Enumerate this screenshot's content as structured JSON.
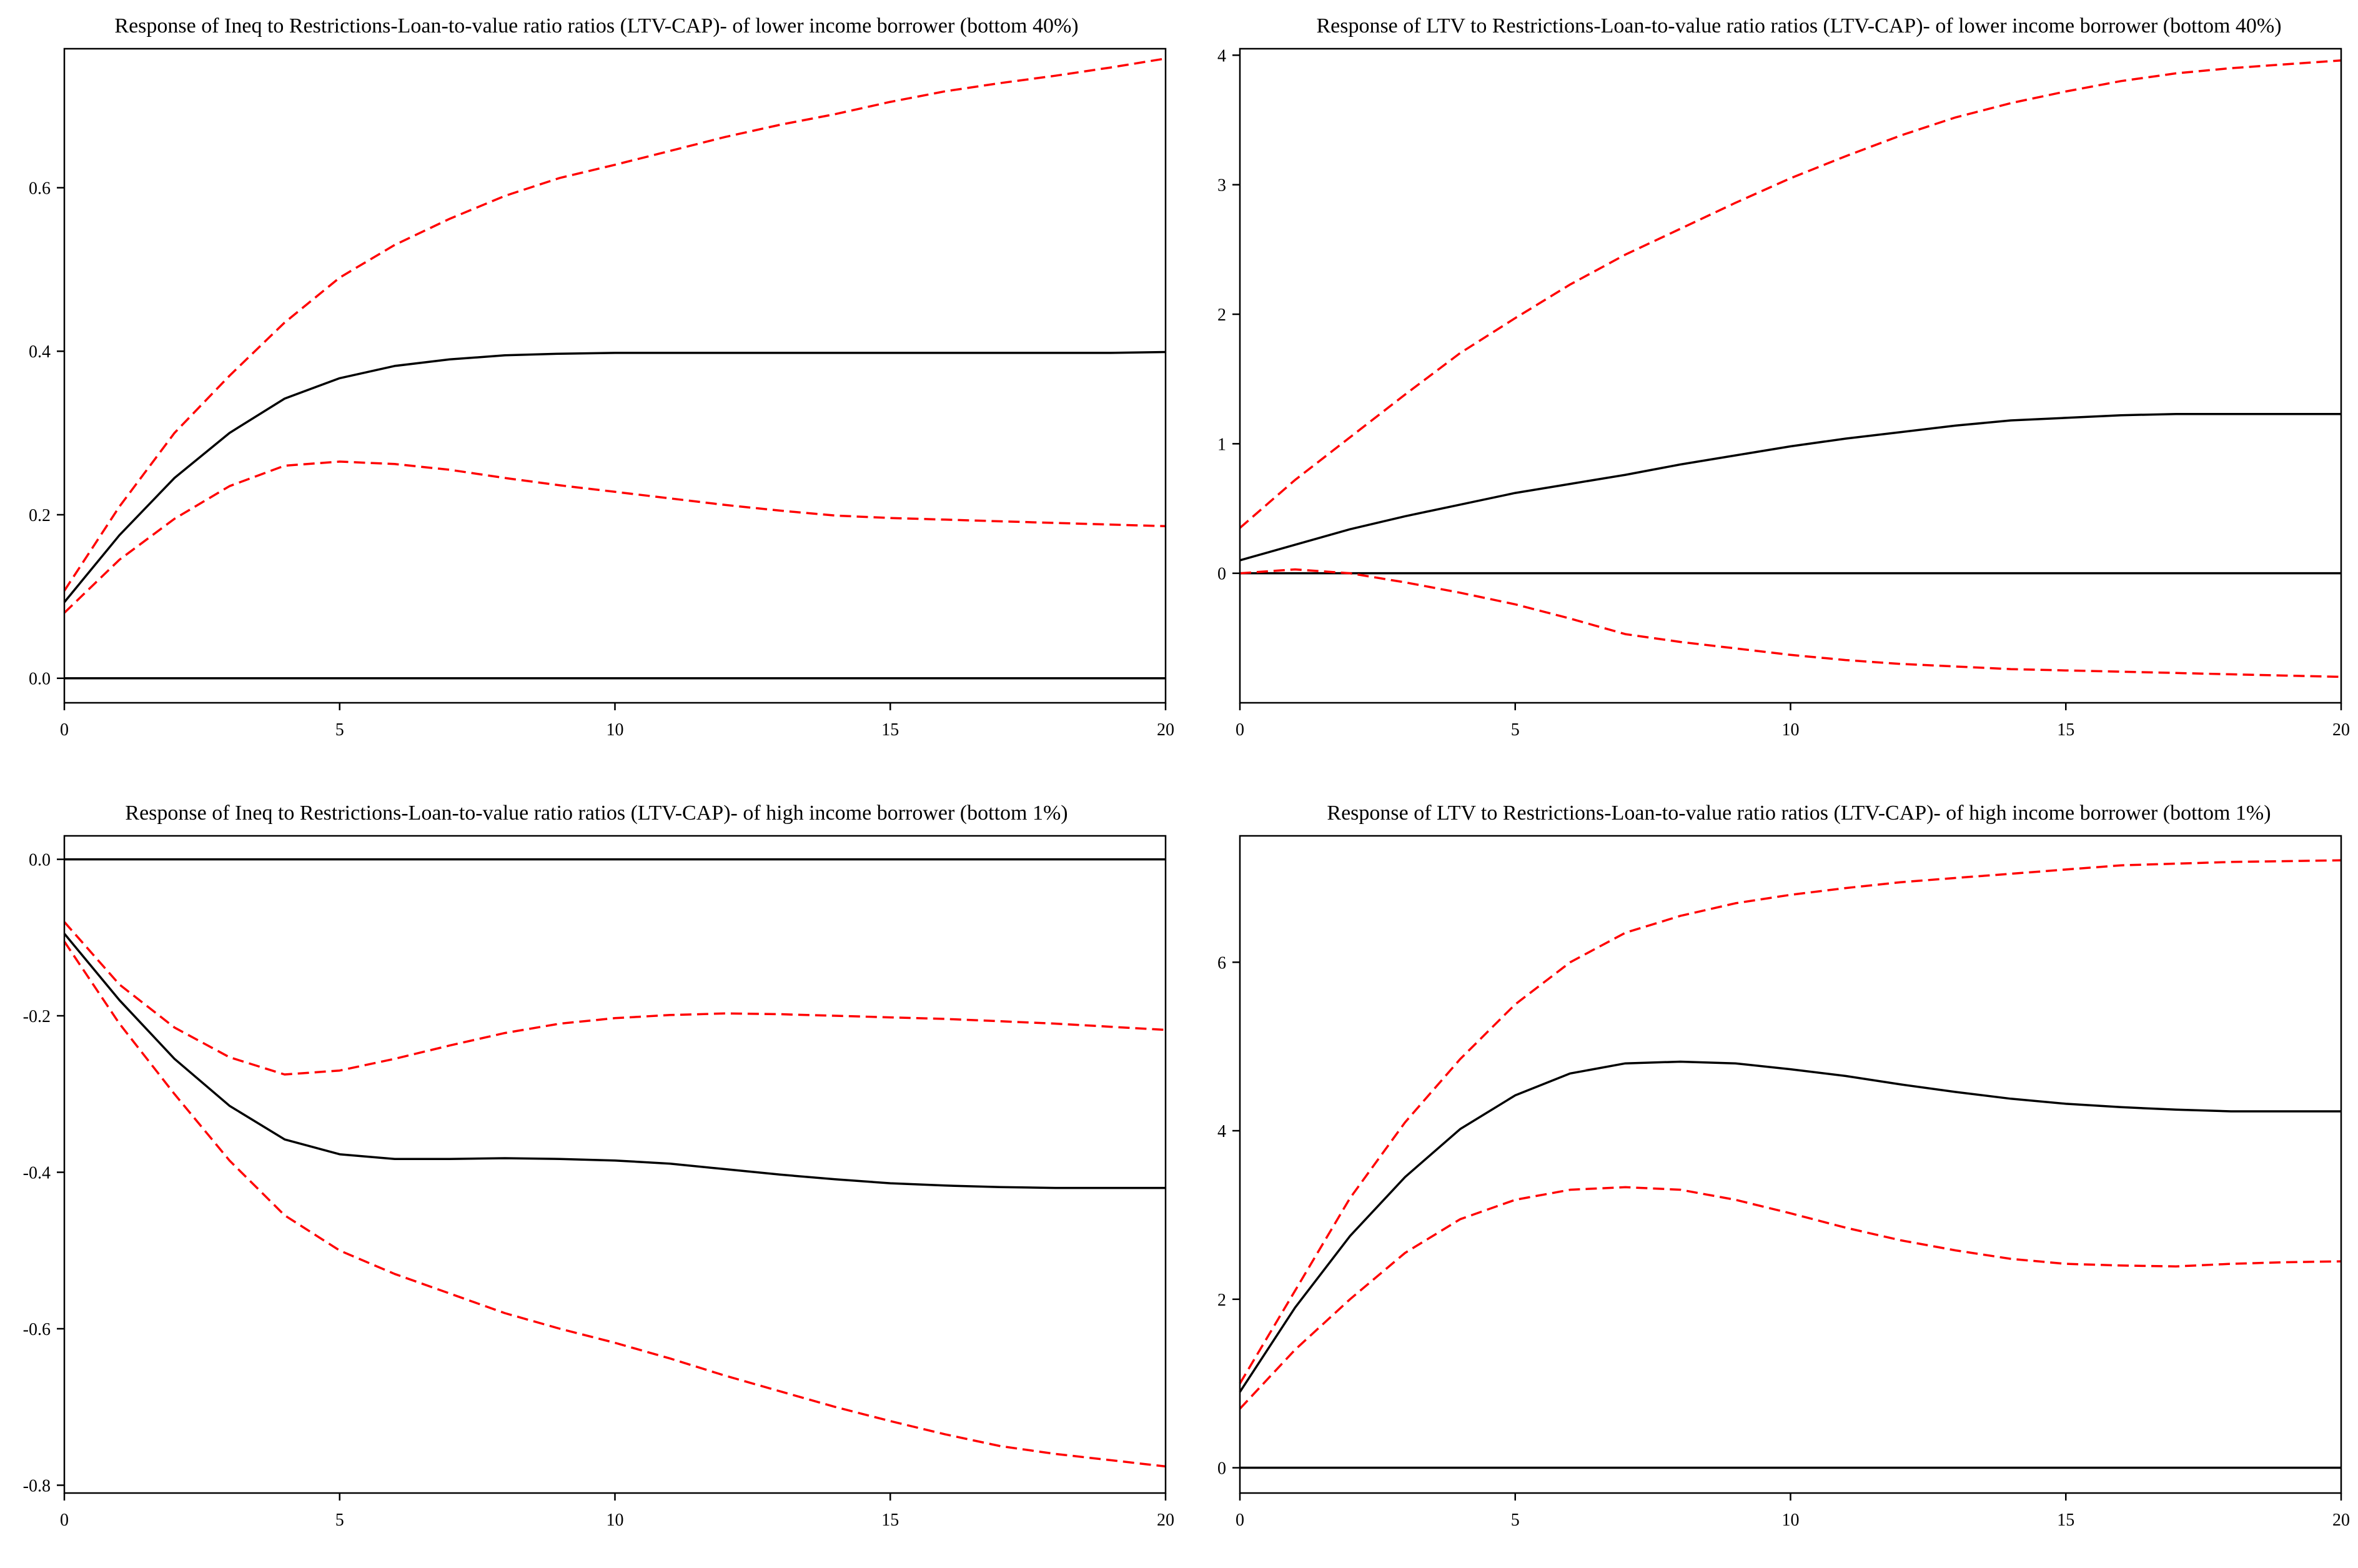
{
  "colors": {
    "response": "#000000",
    "bands": "#ff0000",
    "axes": "#000000"
  },
  "chart_data": [
    {
      "type": "line",
      "title": "Response of Ineq to Restrictions-Loan-to-value ratio ratios (LTV-CAP)- of lower income borrower (bottom 40%)",
      "x": [
        0,
        1,
        2,
        3,
        4,
        5,
        6,
        7,
        8,
        9,
        10,
        11,
        12,
        13,
        14,
        15,
        16,
        17,
        18,
        19,
        20
      ],
      "xlim": [
        0,
        20
      ],
      "xticks": [
        0,
        5,
        10,
        15,
        20
      ],
      "ylim": [
        -0.03,
        0.77
      ],
      "yticks": [
        0.0,
        0.2,
        0.4,
        0.6
      ],
      "ytick_labels": [
        "0.0",
        "0.2",
        "0.4",
        "0.6"
      ],
      "zero_line": 0,
      "series": [
        {
          "name": "response",
          "style": "solid",
          "values": [
            0.093,
            0.175,
            0.245,
            0.3,
            0.342,
            0.367,
            0.382,
            0.39,
            0.395,
            0.397,
            0.398,
            0.398,
            0.398,
            0.398,
            0.398,
            0.398,
            0.398,
            0.398,
            0.398,
            0.398,
            0.399
          ]
        },
        {
          "name": "upper band",
          "style": "dashed",
          "values": [
            0.107,
            0.21,
            0.3,
            0.37,
            0.435,
            0.49,
            0.53,
            0.562,
            0.59,
            0.612,
            0.628,
            0.645,
            0.662,
            0.677,
            0.69,
            0.705,
            0.718,
            0.728,
            0.737,
            0.747,
            0.758
          ]
        },
        {
          "name": "lower band",
          "style": "dashed",
          "values": [
            0.08,
            0.145,
            0.195,
            0.235,
            0.26,
            0.265,
            0.262,
            0.255,
            0.245,
            0.236,
            0.228,
            0.22,
            0.212,
            0.205,
            0.199,
            0.196,
            0.194,
            0.192,
            0.19,
            0.188,
            0.186
          ]
        }
      ]
    },
    {
      "type": "line",
      "title": "Response of LTV to Restrictions-Loan-to-value ratio ratios (LTV-CAP)- of lower income borrower (bottom 40%)",
      "x": [
        0,
        1,
        2,
        3,
        4,
        5,
        6,
        7,
        8,
        9,
        10,
        11,
        12,
        13,
        14,
        15,
        16,
        17,
        18,
        19,
        20
      ],
      "xlim": [
        0,
        20
      ],
      "xticks": [
        0,
        5,
        10,
        15,
        20
      ],
      "ylim": [
        -1.0,
        4.05
      ],
      "yticks": [
        0,
        1,
        2,
        3,
        4
      ],
      "ytick_labels": [
        "0",
        "1",
        "2",
        "3",
        "4"
      ],
      "zero_line": 0,
      "series": [
        {
          "name": "response",
          "style": "solid",
          "values": [
            0.1,
            0.22,
            0.34,
            0.44,
            0.53,
            0.62,
            0.69,
            0.76,
            0.84,
            0.91,
            0.98,
            1.04,
            1.09,
            1.14,
            1.18,
            1.2,
            1.22,
            1.23,
            1.23,
            1.23,
            1.23
          ]
        },
        {
          "name": "upper band",
          "style": "dashed",
          "values": [
            0.35,
            0.72,
            1.05,
            1.38,
            1.7,
            1.97,
            2.23,
            2.46,
            2.66,
            2.86,
            3.05,
            3.22,
            3.38,
            3.52,
            3.63,
            3.72,
            3.8,
            3.86,
            3.9,
            3.93,
            3.96
          ]
        },
        {
          "name": "lower band",
          "style": "dashed",
          "values": [
            0.0,
            0.03,
            0.0,
            -0.07,
            -0.15,
            -0.24,
            -0.35,
            -0.47,
            -0.53,
            -0.58,
            -0.63,
            -0.67,
            -0.7,
            -0.72,
            -0.74,
            -0.75,
            -0.76,
            -0.77,
            -0.78,
            -0.79,
            -0.8
          ]
        }
      ]
    },
    {
      "type": "line",
      "title": "Response of Ineq to Restrictions-Loan-to-value ratio ratios (LTV-CAP)- of high income borrower (bottom 1%)",
      "x": [
        0,
        1,
        2,
        3,
        4,
        5,
        6,
        7,
        8,
        9,
        10,
        11,
        12,
        13,
        14,
        15,
        16,
        17,
        18,
        19,
        20
      ],
      "xlim": [
        0,
        20
      ],
      "xticks": [
        0,
        5,
        10,
        15,
        20
      ],
      "ylim": [
        -0.81,
        0.03
      ],
      "yticks": [
        0.0,
        -0.2,
        -0.4,
        -0.6,
        -0.8
      ],
      "ytick_labels": [
        "0.0",
        "-0.2",
        "-0.4",
        "-0.6",
        "-0.8"
      ],
      "zero_line": 0,
      "series": [
        {
          "name": "response",
          "style": "solid",
          "values": [
            -0.095,
            -0.18,
            -0.255,
            -0.315,
            -0.358,
            -0.377,
            -0.383,
            -0.383,
            -0.382,
            -0.383,
            -0.385,
            -0.389,
            -0.396,
            -0.403,
            -0.409,
            -0.414,
            -0.417,
            -0.419,
            -0.42,
            -0.42,
            -0.42
          ]
        },
        {
          "name": "upper band",
          "style": "dashed",
          "values": [
            -0.08,
            -0.16,
            -0.215,
            -0.253,
            -0.275,
            -0.27,
            -0.255,
            -0.238,
            -0.222,
            -0.21,
            -0.203,
            -0.199,
            -0.197,
            -0.198,
            -0.2,
            -0.202,
            -0.204,
            -0.207,
            -0.21,
            -0.214,
            -0.218
          ]
        },
        {
          "name": "lower band",
          "style": "dashed",
          "values": [
            -0.105,
            -0.21,
            -0.3,
            -0.385,
            -0.455,
            -0.5,
            -0.53,
            -0.555,
            -0.58,
            -0.6,
            -0.618,
            -0.638,
            -0.66,
            -0.68,
            -0.7,
            -0.718,
            -0.735,
            -0.75,
            -0.76,
            -0.768,
            -0.776
          ]
        }
      ]
    },
    {
      "type": "line",
      "title": "Response of LTV to Restrictions-Loan-to-value ratio ratios (LTV-CAP)- of high income borrower (bottom 1%)",
      "x": [
        0,
        1,
        2,
        3,
        4,
        5,
        6,
        7,
        8,
        9,
        10,
        11,
        12,
        13,
        14,
        15,
        16,
        17,
        18,
        19,
        20
      ],
      "xlim": [
        0,
        20
      ],
      "xticks": [
        0,
        5,
        10,
        15,
        20
      ],
      "ylim": [
        -0.3,
        7.5
      ],
      "yticks": [
        0,
        2,
        4,
        6
      ],
      "ytick_labels": [
        "0",
        "2",
        "4",
        "6"
      ],
      "zero_line": 0,
      "series": [
        {
          "name": "response",
          "style": "solid",
          "values": [
            0.9,
            1.9,
            2.75,
            3.45,
            4.02,
            4.42,
            4.68,
            4.8,
            4.82,
            4.8,
            4.73,
            4.65,
            4.55,
            4.46,
            4.38,
            4.32,
            4.28,
            4.25,
            4.23,
            4.23,
            4.23
          ]
        },
        {
          "name": "upper band",
          "style": "dashed",
          "values": [
            1.0,
            2.1,
            3.2,
            4.1,
            4.85,
            5.5,
            6.0,
            6.35,
            6.55,
            6.7,
            6.8,
            6.88,
            6.95,
            7.0,
            7.05,
            7.1,
            7.15,
            7.17,
            7.19,
            7.2,
            7.21
          ]
        },
        {
          "name": "lower band",
          "style": "dashed",
          "values": [
            0.7,
            1.4,
            2.0,
            2.55,
            2.95,
            3.18,
            3.3,
            3.33,
            3.3,
            3.18,
            3.02,
            2.85,
            2.7,
            2.58,
            2.48,
            2.42,
            2.4,
            2.39,
            2.42,
            2.44,
            2.45
          ]
        }
      ]
    }
  ]
}
